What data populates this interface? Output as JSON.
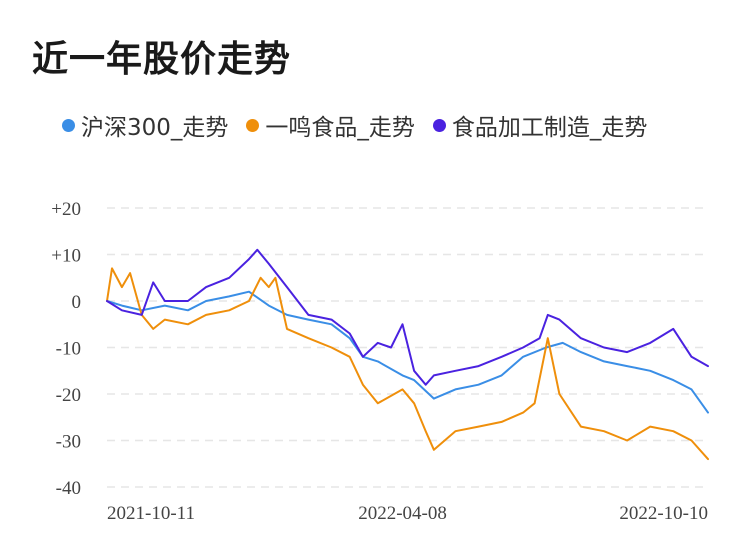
{
  "title": "近一年股价走势",
  "chart_data": {
    "type": "line",
    "title": "近一年股价走势",
    "xlabel": "",
    "ylabel": "",
    "ylim": [
      -40,
      20
    ],
    "yticks": [
      "+20",
      "+10",
      "0",
      "-10",
      "-20",
      "-30",
      "-40"
    ],
    "ytick_values": [
      20,
      10,
      0,
      -10,
      -20,
      -30,
      -40
    ],
    "xlim": [
      "2021-10-11",
      "2022-10-10"
    ],
    "xticks": [
      "2021-10-11",
      "2022-04-08",
      "2022-10-10"
    ],
    "grid": true,
    "legend_position": "top",
    "series": [
      {
        "name": "沪深300_走势",
        "color": "#3a8ee6",
        "points": [
          [
            "2021-10-11",
            0
          ],
          [
            "2021-10-20",
            -1
          ],
          [
            "2021-11-01",
            -2
          ],
          [
            "2021-11-15",
            -1
          ],
          [
            "2021-11-29",
            -2
          ],
          [
            "2021-12-10",
            0
          ],
          [
            "2021-12-24",
            1
          ],
          [
            "2022-01-05",
            2
          ],
          [
            "2022-01-17",
            -1
          ],
          [
            "2022-01-28",
            -3
          ],
          [
            "2022-02-10",
            -4
          ],
          [
            "2022-02-24",
            -5
          ],
          [
            "2022-03-07",
            -8
          ],
          [
            "2022-03-15",
            -12
          ],
          [
            "2022-03-24",
            -13
          ],
          [
            "2022-04-08",
            -16
          ],
          [
            "2022-04-15",
            -17
          ],
          [
            "2022-04-27",
            -21
          ],
          [
            "2022-05-10",
            -19
          ],
          [
            "2022-05-24",
            -18
          ],
          [
            "2022-06-07",
            -16
          ],
          [
            "2022-06-20",
            -12
          ],
          [
            "2022-07-04",
            -10
          ],
          [
            "2022-07-14",
            -9
          ],
          [
            "2022-07-25",
            -11
          ],
          [
            "2022-08-08",
            -13
          ],
          [
            "2022-08-22",
            -14
          ],
          [
            "2022-09-05",
            -15
          ],
          [
            "2022-09-19",
            -17
          ],
          [
            "2022-09-30",
            -19
          ],
          [
            "2022-10-10",
            -24
          ]
        ]
      },
      {
        "name": "一鸣食品_走势",
        "color": "#ef8f0b",
        "points": [
          [
            "2021-10-11",
            0
          ],
          [
            "2021-10-14",
            7
          ],
          [
            "2021-10-20",
            3
          ],
          [
            "2021-10-25",
            6
          ],
          [
            "2021-11-01",
            -3
          ],
          [
            "2021-11-08",
            -6
          ],
          [
            "2021-11-15",
            -4
          ],
          [
            "2021-11-29",
            -5
          ],
          [
            "2021-12-10",
            -3
          ],
          [
            "2021-12-24",
            -2
          ],
          [
            "2022-01-05",
            0
          ],
          [
            "2022-01-12",
            5
          ],
          [
            "2022-01-17",
            3
          ],
          [
            "2022-01-21",
            5
          ],
          [
            "2022-01-28",
            -6
          ],
          [
            "2022-02-10",
            -8
          ],
          [
            "2022-02-24",
            -10
          ],
          [
            "2022-03-07",
            -12
          ],
          [
            "2022-03-15",
            -18
          ],
          [
            "2022-03-24",
            -22
          ],
          [
            "2022-04-08",
            -19
          ],
          [
            "2022-04-15",
            -22
          ],
          [
            "2022-04-22",
            -28
          ],
          [
            "2022-04-27",
            -32
          ],
          [
            "2022-05-10",
            -28
          ],
          [
            "2022-05-24",
            -27
          ],
          [
            "2022-06-07",
            -26
          ],
          [
            "2022-06-20",
            -24
          ],
          [
            "2022-06-27",
            -22
          ],
          [
            "2022-07-05",
            -8
          ],
          [
            "2022-07-12",
            -20
          ],
          [
            "2022-07-25",
            -27
          ],
          [
            "2022-08-08",
            -28
          ],
          [
            "2022-08-22",
            -30
          ],
          [
            "2022-09-05",
            -27
          ],
          [
            "2022-09-19",
            -28
          ],
          [
            "2022-09-30",
            -30
          ],
          [
            "2022-10-10",
            -34
          ]
        ]
      },
      {
        "name": "食品加工制造_走势",
        "color": "#4a22e0",
        "points": [
          [
            "2021-10-11",
            0
          ],
          [
            "2021-10-20",
            -2
          ],
          [
            "2021-11-01",
            -3
          ],
          [
            "2021-11-08",
            4
          ],
          [
            "2021-11-15",
            0
          ],
          [
            "2021-11-29",
            0
          ],
          [
            "2021-12-10",
            3
          ],
          [
            "2021-12-24",
            5
          ],
          [
            "2022-01-05",
            9
          ],
          [
            "2022-01-10",
            11
          ],
          [
            "2022-01-17",
            8
          ],
          [
            "2022-01-28",
            3
          ],
          [
            "2022-02-10",
            -3
          ],
          [
            "2022-02-24",
            -4
          ],
          [
            "2022-03-07",
            -7
          ],
          [
            "2022-03-15",
            -12
          ],
          [
            "2022-03-24",
            -9
          ],
          [
            "2022-04-01",
            -10
          ],
          [
            "2022-04-08",
            -5
          ],
          [
            "2022-04-15",
            -15
          ],
          [
            "2022-04-22",
            -18
          ],
          [
            "2022-04-27",
            -16
          ],
          [
            "2022-05-10",
            -15
          ],
          [
            "2022-05-24",
            -14
          ],
          [
            "2022-06-07",
            -12
          ],
          [
            "2022-06-20",
            -10
          ],
          [
            "2022-06-30",
            -8
          ],
          [
            "2022-07-05",
            -3
          ],
          [
            "2022-07-12",
            -4
          ],
          [
            "2022-07-25",
            -8
          ],
          [
            "2022-08-08",
            -10
          ],
          [
            "2022-08-22",
            -11
          ],
          [
            "2022-09-05",
            -9
          ],
          [
            "2022-09-19",
            -6
          ],
          [
            "2022-09-30",
            -12
          ],
          [
            "2022-10-10",
            -14
          ]
        ]
      }
    ]
  }
}
